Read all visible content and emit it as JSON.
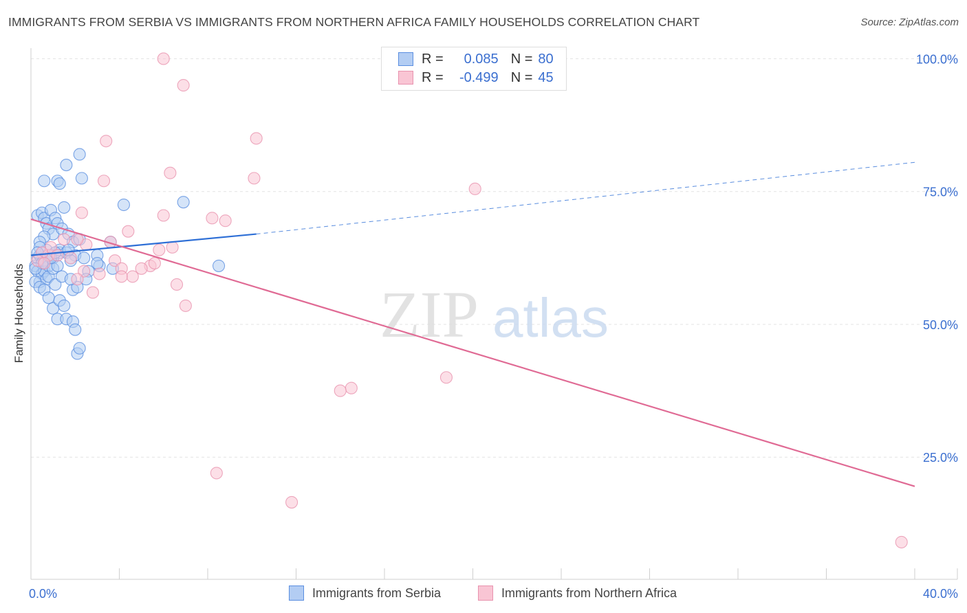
{
  "title": "IMMIGRANTS FROM SERBIA VS IMMIGRANTS FROM NORTHERN AFRICA FAMILY HOUSEHOLDS CORRELATION CHART",
  "source": "Source: ZipAtlas.com",
  "watermark": {
    "zip": "ZIP",
    "atlas": "atlas"
  },
  "legend": {
    "rows": [
      {
        "r_label": "R =",
        "r_value": "0.085",
        "n_label": "N =",
        "n_value": "80"
      },
      {
        "r_label": "R =",
        "r_value": "-0.499",
        "n_label": "N =",
        "n_value": "45"
      }
    ]
  },
  "bottom_legend": {
    "serbia": "Immigrants from Serbia",
    "nafrica": "Immigrants from Northern Africa"
  },
  "colors": {
    "serbia_fill": "#b3cdf3",
    "serbia_stroke": "#5a8ee0",
    "serbia_line": "#2e6fd6",
    "nafrica_fill": "#f9c5d4",
    "nafrica_stroke": "#e892ae",
    "nafrica_line": "#e06a94",
    "tick_label": "#3b6fd0"
  },
  "chart_data": {
    "type": "scatter",
    "title": "IMMIGRANTS FROM SERBIA VS IMMIGRANTS FROM NORTHERN AFRICA FAMILY HOUSEHOLDS CORRELATION CHART",
    "xlabel": "",
    "ylabel": "Family Households",
    "xlim": [
      0,
      40
    ],
    "ylim": [
      2,
      102
    ],
    "x_tick_labels": [
      "0.0%",
      "40.0%"
    ],
    "y_ticks": [
      25,
      50,
      75,
      100
    ],
    "y_tick_labels": [
      "25.0%",
      "50.0%",
      "75.0%",
      "100.0%"
    ],
    "grid": true,
    "series": [
      {
        "name": "Immigrants from Serbia",
        "r": 0.085,
        "n": 80,
        "trend": {
          "x0": 0,
          "y0": 63.0,
          "x1": 10.2,
          "y1": 67.0,
          "dash_x1": 40,
          "dash_y1": 80.5
        },
        "points": [
          [
            0.2,
            61
          ],
          [
            0.3,
            62.5
          ],
          [
            0.3,
            60
          ],
          [
            0.4,
            58
          ],
          [
            0.4,
            63
          ],
          [
            0.5,
            59.5
          ],
          [
            0.5,
            61.5
          ],
          [
            0.6,
            60
          ],
          [
            0.6,
            62
          ],
          [
            0.7,
            58.5
          ],
          [
            0.7,
            64
          ],
          [
            0.8,
            61
          ],
          [
            0.8,
            59
          ],
          [
            0.9,
            63
          ],
          [
            1.0,
            62.5
          ],
          [
            1.0,
            60.5
          ],
          [
            1.1,
            57.5
          ],
          [
            1.2,
            61
          ],
          [
            1.3,
            63.5
          ],
          [
            1.4,
            59
          ],
          [
            0.3,
            70.5
          ],
          [
            0.5,
            71
          ],
          [
            0.6,
            70
          ],
          [
            0.7,
            69
          ],
          [
            0.9,
            71.5
          ],
          [
            0.8,
            68
          ],
          [
            1.0,
            67
          ],
          [
            0.6,
            66.5
          ],
          [
            0.4,
            65.5
          ],
          [
            1.1,
            70
          ],
          [
            1.2,
            69
          ],
          [
            1.4,
            68
          ],
          [
            1.5,
            72
          ],
          [
            1.7,
            67
          ],
          [
            1.9,
            65.5
          ],
          [
            2.2,
            66
          ],
          [
            1.3,
            64
          ],
          [
            1.6,
            63.5
          ],
          [
            2.0,
            63
          ],
          [
            1.8,
            62
          ],
          [
            0.2,
            58
          ],
          [
            0.4,
            57
          ],
          [
            0.6,
            56.5
          ],
          [
            0.8,
            55
          ],
          [
            1.0,
            53
          ],
          [
            1.3,
            54.5
          ],
          [
            1.5,
            53.5
          ],
          [
            1.9,
            56.5
          ],
          [
            2.1,
            57
          ],
          [
            1.8,
            58.5
          ],
          [
            0.6,
            77
          ],
          [
            1.2,
            77
          ],
          [
            1.3,
            76.5
          ],
          [
            1.6,
            80
          ],
          [
            2.2,
            82
          ],
          [
            2.3,
            77.5
          ],
          [
            1.2,
            51
          ],
          [
            1.6,
            51
          ],
          [
            1.9,
            50.5
          ],
          [
            2.0,
            49
          ],
          [
            2.1,
            44.5
          ],
          [
            2.2,
            45.5
          ],
          [
            2.4,
            62.5
          ],
          [
            2.6,
            60
          ],
          [
            3.0,
            63
          ],
          [
            3.1,
            61
          ],
          [
            3.6,
            65.5
          ],
          [
            3.7,
            60.5
          ],
          [
            4.2,
            72.5
          ],
          [
            6.9,
            73
          ],
          [
            8.5,
            61
          ],
          [
            3.0,
            61.5
          ],
          [
            0.9,
            62.5
          ],
          [
            1.1,
            63.5
          ],
          [
            0.4,
            64.5
          ],
          [
            0.5,
            61.5
          ],
          [
            0.3,
            63.5
          ],
          [
            0.2,
            60.5
          ],
          [
            1.7,
            64
          ],
          [
            2.5,
            58.5
          ]
        ]
      },
      {
        "name": "Immigrants from Northern Africa",
        "r": -0.499,
        "n": 45,
        "trend": {
          "x0": 0,
          "y0": 69.8,
          "x1": 40,
          "y1": 19.5
        },
        "points": [
          [
            6.0,
            100
          ],
          [
            6.9,
            95
          ],
          [
            10.2,
            85
          ],
          [
            3.4,
            84.5
          ],
          [
            3.3,
            77
          ],
          [
            6.3,
            78.5
          ],
          [
            10.1,
            77.5
          ],
          [
            20.1,
            75.5
          ],
          [
            2.3,
            71
          ],
          [
            6.0,
            70.5
          ],
          [
            8.2,
            70
          ],
          [
            8.8,
            69.5
          ],
          [
            4.4,
            67.5
          ],
          [
            1.5,
            66
          ],
          [
            2.5,
            65
          ],
          [
            3.6,
            65.5
          ],
          [
            5.8,
            64
          ],
          [
            6.4,
            64.5
          ],
          [
            0.8,
            63
          ],
          [
            1.8,
            62.5
          ],
          [
            3.8,
            62
          ],
          [
            5.4,
            61
          ],
          [
            5.6,
            61.5
          ],
          [
            2.4,
            60
          ],
          [
            3.1,
            59.5
          ],
          [
            4.1,
            60.5
          ],
          [
            4.6,
            59
          ],
          [
            5.0,
            60.5
          ],
          [
            2.1,
            58.5
          ],
          [
            6.6,
            57.5
          ],
          [
            2.8,
            56
          ],
          [
            7.0,
            53.5
          ],
          [
            0.9,
            64.5
          ],
          [
            1.2,
            63
          ],
          [
            2.1,
            66
          ],
          [
            0.5,
            63.5
          ],
          [
            0.3,
            62
          ],
          [
            0.6,
            61.5
          ],
          [
            4.1,
            59
          ],
          [
            18.8,
            40
          ],
          [
            14.5,
            38
          ],
          [
            14.0,
            37.5
          ],
          [
            8.4,
            22
          ],
          [
            11.8,
            16.5
          ],
          [
            39.4,
            9
          ]
        ]
      }
    ]
  }
}
